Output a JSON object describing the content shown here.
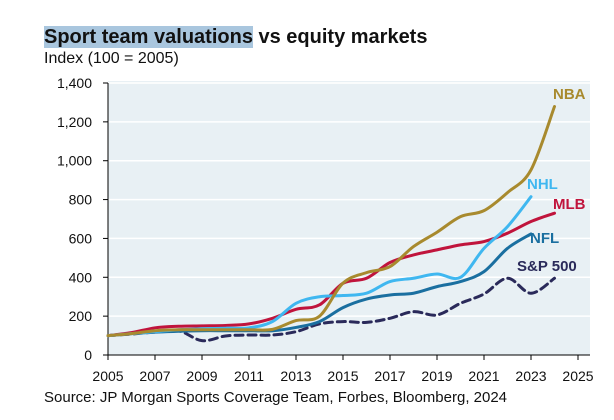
{
  "title_highlight": "Sport team valuations",
  "title_rest": " vs equity markets",
  "subtitle": "Index (100 = 2005)",
  "source": "Source: JP Morgan Sports Coverage Team, Forbes, Bloomberg, 2024",
  "chart_data": {
    "type": "line",
    "title": "Sport team valuations vs equity markets",
    "ylabel": "Index (100 = 2005)",
    "xlabel": "",
    "xlim": [
      2005,
      2025
    ],
    "ylim": [
      0,
      1400
    ],
    "xticks": [
      "2005",
      "2007",
      "2009",
      "2011",
      "2013",
      "2015",
      "2017",
      "2019",
      "2021",
      "2023",
      "2025"
    ],
    "yticks": [
      "0",
      "200",
      "400",
      "600",
      "800",
      "1,000",
      "1,200",
      "1,400"
    ],
    "grid": true,
    "legend": "inline labels at line ends",
    "series": [
      {
        "name": "NBA",
        "color": "#a88a2e",
        "dashed": false,
        "x": [
          2005,
          2006,
          2007,
          2008,
          2009,
          2010,
          2011,
          2012,
          2013,
          2014,
          2015,
          2016,
          2017,
          2018,
          2019,
          2020,
          2021,
          2022,
          2023,
          2024
        ],
        "y": [
          100,
          110,
          125,
          130,
          130,
          130,
          130,
          132,
          177,
          200,
          370,
          424,
          455,
          558,
          632,
          712,
          743,
          836,
          953,
          1279
        ]
      },
      {
        "name": "NHL",
        "color": "#3fb7f0",
        "dashed": false,
        "x": [
          2005,
          2006,
          2007,
          2008,
          2009,
          2010,
          2011,
          2012,
          2013,
          2014,
          2015,
          2016,
          2017,
          2018,
          2019,
          2020,
          2021,
          2022,
          2023
        ],
        "y": [
          100,
          110,
          120,
          130,
          135,
          138,
          140,
          172,
          266,
          300,
          306,
          318,
          378,
          395,
          417,
          400,
          549,
          661,
          815
        ]
      },
      {
        "name": "MLB",
        "color": "#c0143c",
        "dashed": false,
        "x": [
          2005,
          2006,
          2007,
          2008,
          2009,
          2010,
          2011,
          2012,
          2013,
          2014,
          2015,
          2016,
          2017,
          2018,
          2019,
          2020,
          2021,
          2022,
          2023,
          2024
        ],
        "y": [
          100,
          115,
          140,
          148,
          150,
          152,
          160,
          189,
          235,
          258,
          369,
          395,
          476,
          515,
          541,
          567,
          584,
          627,
          687,
          730
        ]
      },
      {
        "name": "NFL",
        "color": "#1a6fa0",
        "dashed": false,
        "x": [
          2005,
          2006,
          2007,
          2008,
          2009,
          2010,
          2011,
          2012,
          2013,
          2014,
          2015,
          2016,
          2017,
          2018,
          2019,
          2020,
          2021,
          2022,
          2023
        ],
        "y": [
          100,
          110,
          118,
          122,
          125,
          125,
          125,
          125,
          142,
          172,
          244,
          288,
          309,
          318,
          352,
          378,
          429,
          549,
          623
        ]
      },
      {
        "name": "S&P 500",
        "color": "#2a2a5a",
        "dashed": true,
        "x": [
          2005,
          2006,
          2007,
          2008,
          2009,
          2010,
          2011,
          2012,
          2013,
          2014,
          2015,
          2016,
          2017,
          2018,
          2019,
          2020,
          2021,
          2022,
          2023,
          2024
        ],
        "y": [
          100,
          108,
          118,
          125,
          74,
          98,
          103,
          103,
          120,
          160,
          172,
          168,
          189,
          223,
          206,
          266,
          314,
          395,
          318,
          395
        ]
      }
    ]
  }
}
